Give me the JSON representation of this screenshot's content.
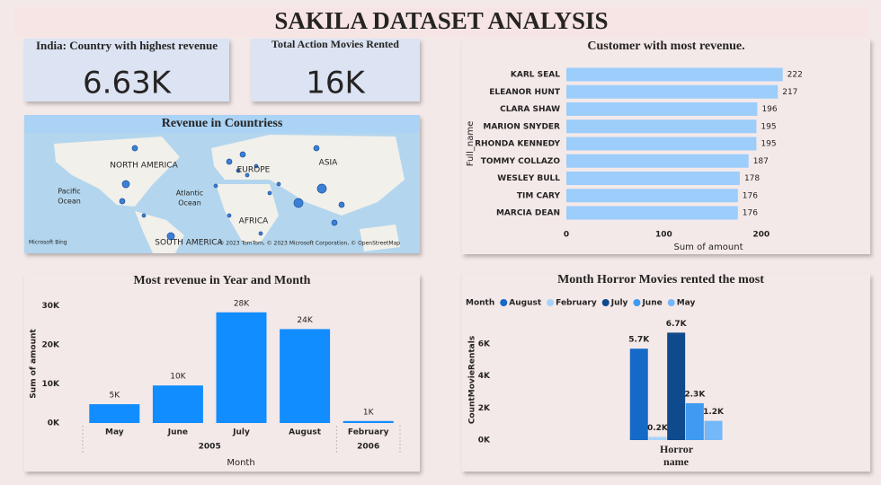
{
  "title": "SAKILA DATASET ANALYSIS",
  "cards": [
    {
      "label": "India: Country with highest revenue",
      "value": "6.63K"
    },
    {
      "label": "Total Action Movies Rented",
      "value": "16K"
    }
  ],
  "map": {
    "title": "Revenue in Countriess",
    "labels": [
      "NORTH AMERICA",
      "EUROPE",
      "ASIA",
      "AFRICA",
      "SOUTH AMERICA",
      "Pacific",
      "Ocean",
      "Atlantic",
      "Ocean"
    ],
    "logo": "Microsoft Bing",
    "attribution": "© 2023 TomTom, © 2023 Microsoft Corporation, © OpenStreetMap"
  },
  "chart_data": [
    {
      "type": "barh",
      "title": "Customer with most revenue.",
      "categories": [
        "KARL SEAL",
        "ELEANOR HUNT",
        "CLARA SHAW",
        "MARION SNYDER",
        "RHONDA KENNEDY",
        "TOMMY COLLAZO",
        "WESLEY BULL",
        "TIM CARY",
        "MARCIA DEAN"
      ],
      "values": [
        222,
        217,
        196,
        195,
        195,
        187,
        178,
        176,
        176
      ],
      "color": "#9ccdfb",
      "xlim": [
        0,
        250
      ],
      "xticks": [
        0,
        100,
        200
      ],
      "x_label": "Sum of amount",
      "y_label": "Full_name"
    },
    {
      "type": "bar",
      "title": "Most revenue in Year and Month",
      "categories": [
        "May",
        "June",
        "July",
        "August",
        "February"
      ],
      "category_groups": [
        {
          "name": "2005",
          "count": 4
        },
        {
          "name": "2006",
          "count": 1
        }
      ],
      "values": [
        4824,
        9632,
        28374,
        24072,
        514
      ],
      "value_labels": [
        "5K",
        "10K",
        "28K",
        "24K",
        "1K"
      ],
      "color": "#118dff",
      "ylim": [
        0,
        32000
      ],
      "yticks": [
        {
          "value": 0,
          "label": "0K"
        },
        {
          "value": 10000,
          "label": "10K"
        },
        {
          "value": 20000,
          "label": "20K"
        },
        {
          "value": 30000,
          "label": "30K"
        }
      ],
      "x_label": "Month",
      "y_label": "Sum of amount"
    },
    {
      "type": "grouped",
      "title": "Month Horror Movies rented the most",
      "legend_title": "Month",
      "categories": [
        "Horror"
      ],
      "series": [
        {
          "name": "August",
          "color": "#1569c7",
          "values": [
            5700
          ],
          "value_labels": [
            "5.7K"
          ]
        },
        {
          "name": "February",
          "color": "#a7d3fa",
          "values": [
            200
          ],
          "value_labels": [
            "0.2K"
          ]
        },
        {
          "name": "July",
          "color": "#0f4a8c",
          "values": [
            6700
          ],
          "value_labels": [
            "6.7K"
          ]
        },
        {
          "name": "June",
          "color": "#3f9af0",
          "values": [
            2300
          ],
          "value_labels": [
            "2.3K"
          ]
        },
        {
          "name": "May",
          "color": "#74b8f8",
          "values": [
            1200
          ],
          "value_labels": [
            "1.2K"
          ]
        }
      ],
      "ylim": [
        0,
        7000
      ],
      "yticks": [
        {
          "value": 0,
          "label": "0K"
        },
        {
          "value": 2000,
          "label": "2K"
        },
        {
          "value": 4000,
          "label": "4K"
        },
        {
          "value": 6000,
          "label": "6K"
        }
      ],
      "x_label": "name",
      "y_label": "CountMovieRentals"
    }
  ]
}
